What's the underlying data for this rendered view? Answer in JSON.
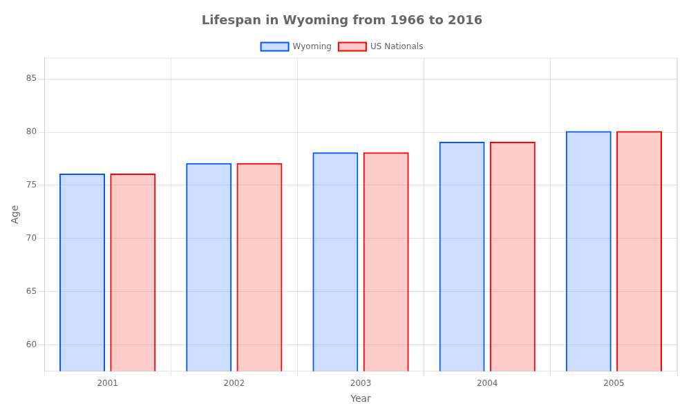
{
  "chart_data": {
    "type": "bar",
    "title": "Lifespan in Wyoming from 1966 to 2016",
    "x_label": "Year",
    "y_label": "Age",
    "categories": [
      "2001",
      "2002",
      "2003",
      "2004",
      "2005"
    ],
    "series": [
      {
        "name": "Wyoming",
        "color": "#0055ff",
        "values": [
          76.1,
          77.1,
          78.1,
          79.1,
          80.1
        ]
      },
      {
        "name": "US Nationals",
        "color": "#ff0000",
        "values": [
          76.1,
          77.1,
          78.1,
          79.1,
          80.1
        ]
      }
    ],
    "ylim": [
      57.5,
      87
    ],
    "yticks": [
      60,
      65,
      70,
      75,
      80,
      85
    ],
    "grid": true,
    "legend": "top"
  }
}
